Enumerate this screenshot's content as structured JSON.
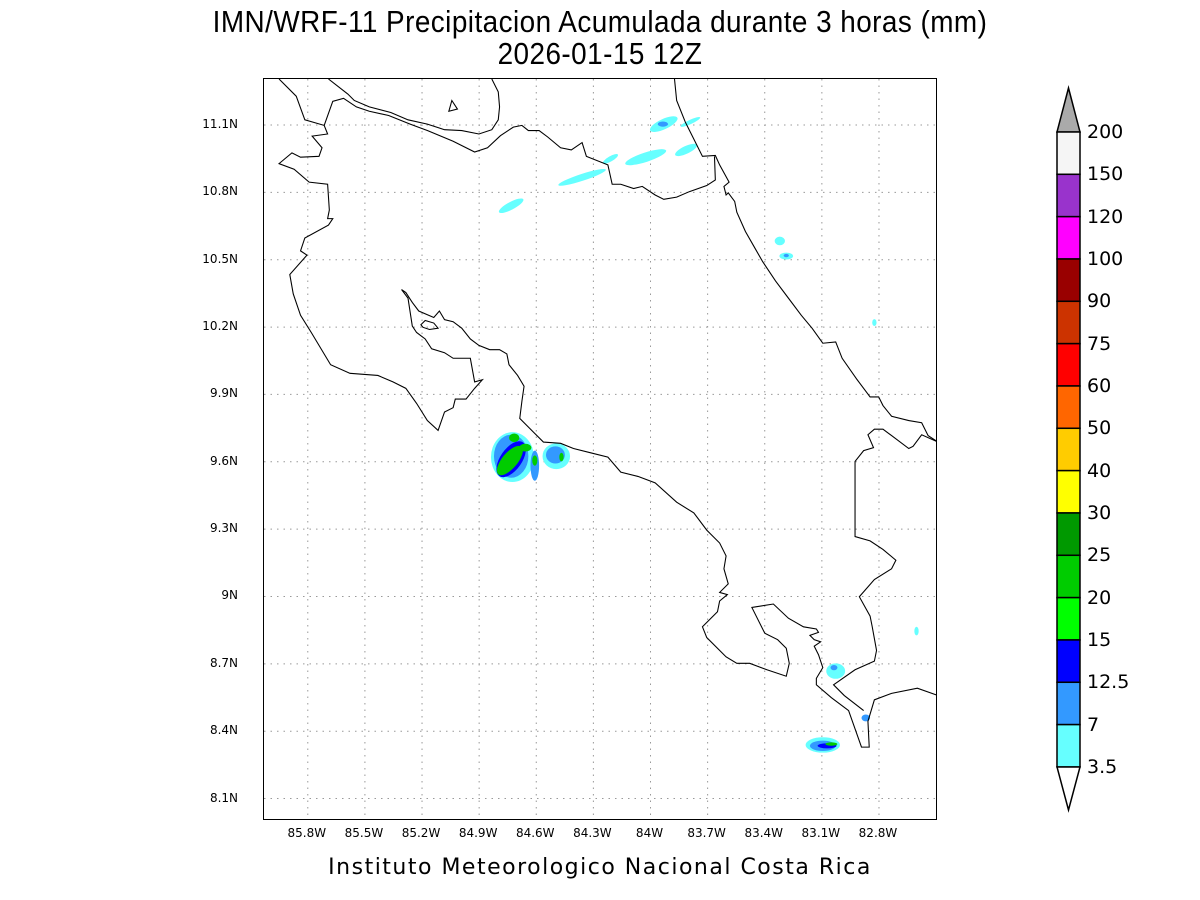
{
  "title": "IMN/WRF-11 Precipitacion Acumulada durante 3 horas (mm)",
  "subtitle": "2026-01-15 12Z",
  "footer": "Instituto Meteorologico Nacional Costa Rica",
  "map": {
    "lon_range": [
      -86.03,
      -82.49
    ],
    "lat_range": [
      8.0,
      11.305
    ],
    "lon_ticks": [
      {
        "value": -85.8,
        "label": "85.8W"
      },
      {
        "value": -85.5,
        "label": "85.5W"
      },
      {
        "value": -85.2,
        "label": "85.2W"
      },
      {
        "value": -84.9,
        "label": "84.9W"
      },
      {
        "value": -84.6,
        "label": "84.6W"
      },
      {
        "value": -84.3,
        "label": "84.3W"
      },
      {
        "value": -84.0,
        "label": "84W"
      },
      {
        "value": -83.7,
        "label": "83.7W"
      },
      {
        "value": -83.4,
        "label": "83.4W"
      },
      {
        "value": -83.1,
        "label": "83.1W"
      },
      {
        "value": -82.8,
        "label": "82.8W"
      }
    ],
    "lat_ticks": [
      {
        "value": 11.1,
        "label": "11.1N"
      },
      {
        "value": 10.8,
        "label": "10.8N"
      },
      {
        "value": 10.5,
        "label": "10.5N"
      },
      {
        "value": 10.2,
        "label": "10.2N"
      },
      {
        "value": 9.9,
        "label": "9.9N"
      },
      {
        "value": 9.6,
        "label": "9.6N"
      },
      {
        "value": 9.3,
        "label": "9.3N"
      },
      {
        "value": 9.0,
        "label": "9N"
      },
      {
        "value": 8.7,
        "label": "8.7N"
      },
      {
        "value": 8.4,
        "label": "8.4N"
      },
      {
        "value": 8.1,
        "label": "8.1N"
      }
    ]
  },
  "colorbar": {
    "levels": [
      "3.5",
      "7",
      "12.5",
      "15",
      "20",
      "25",
      "30",
      "40",
      "50",
      "60",
      "75",
      "90",
      "100",
      "120",
      "150",
      "200"
    ],
    "colors": [
      "#66ffff",
      "#3399ff",
      "#0000ff",
      "#00ff00",
      "#00cc00",
      "#009900",
      "#ffff00",
      "#ffcc00",
      "#ff6600",
      "#ff0000",
      "#cc3300",
      "#990000",
      "#ff00ff",
      "#9933cc",
      "#f5f5f5"
    ],
    "over_color": "#aaaaaa",
    "under_color": "#ffffff"
  }
}
